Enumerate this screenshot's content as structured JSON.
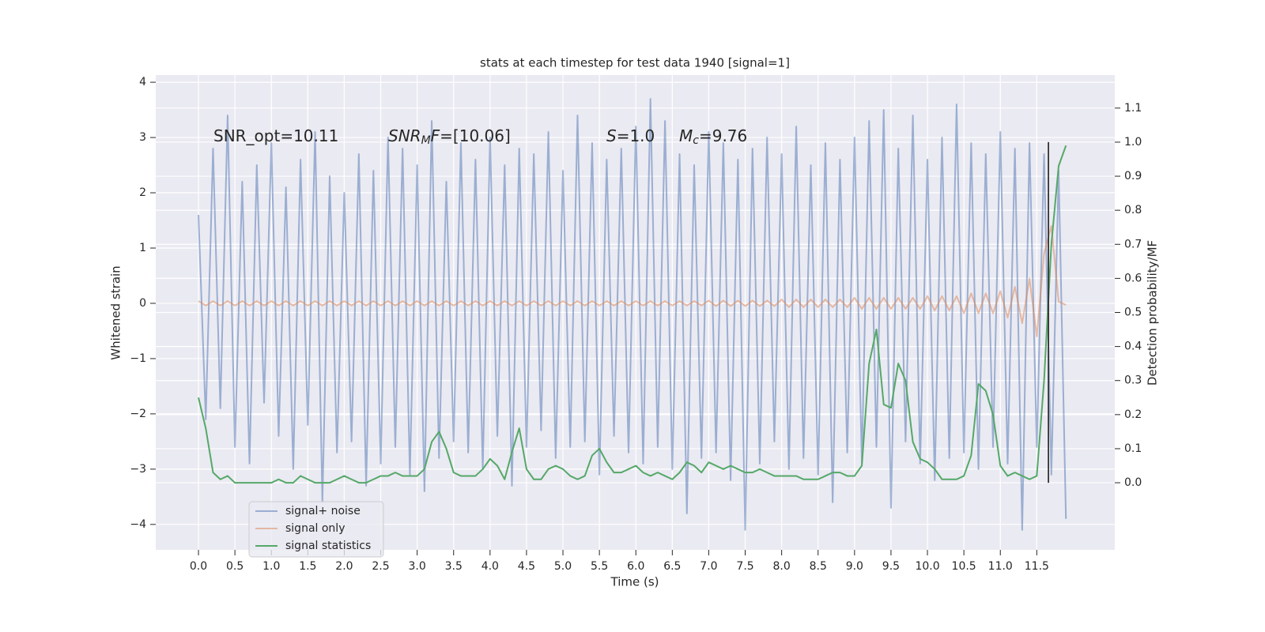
{
  "chart_data": {
    "type": "line",
    "title": "stats at each timestep for test data 1940 [signal=1]",
    "xlabel": "Time (s)",
    "ylabel": "Whitened strain",
    "y2label": "Detection probability/MF",
    "annotations": [
      [
        {
          "text": "SNR_opt=10.11",
          "style": "normal"
        }
      ],
      [
        {
          "text": "SNR",
          "style": "italic"
        },
        {
          "text": "M",
          "style": "sub"
        },
        {
          "text": "F",
          "style": "italic"
        },
        {
          "text": "=[10.06]",
          "style": "normal"
        }
      ],
      [
        {
          "text": "S",
          "style": "italic"
        },
        {
          "text": "=1.0",
          "style": "normal"
        }
      ],
      [
        {
          "text": "M",
          "style": "italic"
        },
        {
          "text": "c",
          "style": "sub"
        },
        {
          "text": "=9.76",
          "style": "normal"
        }
      ]
    ],
    "x": [
      0,
      0.1,
      0.2,
      0.3,
      0.4,
      0.5,
      0.6,
      0.7,
      0.8,
      0.9,
      1,
      1.1,
      1.2,
      1.3,
      1.4,
      1.5,
      1.6,
      1.7,
      1.8,
      1.9,
      2,
      2.1,
      2.2,
      2.3,
      2.4,
      2.5,
      2.6,
      2.7,
      2.8,
      2.9,
      3,
      3.1,
      3.2,
      3.3,
      3.4,
      3.5,
      3.6,
      3.7,
      3.8,
      3.9,
      4,
      4.1,
      4.2,
      4.3,
      4.4,
      4.5,
      4.6,
      4.7,
      4.8,
      4.9,
      5,
      5.1,
      5.2,
      5.3,
      5.4,
      5.5,
      5.6,
      5.7,
      5.8,
      5.9,
      6,
      6.1,
      6.2,
      6.3,
      6.4,
      6.5,
      6.6,
      6.7,
      6.8,
      6.9,
      7,
      7.1,
      7.2,
      7.3,
      7.4,
      7.5,
      7.6,
      7.7,
      7.8,
      7.9,
      8,
      8.1,
      8.2,
      8.3,
      8.4,
      8.5,
      8.6,
      8.7,
      8.8,
      8.9,
      9,
      9.1,
      9.2,
      9.3,
      9.4,
      9.5,
      9.6,
      9.7,
      9.8,
      9.9,
      10,
      10.1,
      10.2,
      10.3,
      10.4,
      10.5,
      10.6,
      10.7,
      10.8,
      10.9,
      11,
      11.1,
      11.2,
      11.3,
      11.4,
      11.5,
      11.6,
      11.7,
      11.8,
      11.9
    ],
    "series": [
      {
        "name": "signal+ noise",
        "color": "#4c72b0",
        "opacity": 0.5,
        "values": [
          1.6,
          -2.1,
          2.8,
          -1.9,
          3.4,
          -2.6,
          2.2,
          -2.9,
          2.5,
          -1.8,
          2.9,
          -2.4,
          2.1,
          -3.0,
          2.6,
          -2.2,
          3.1,
          -3.6,
          2.3,
          -2.7,
          2.0,
          -2.5,
          2.7,
          -3.3,
          2.4,
          -2.9,
          3.0,
          -2.6,
          2.8,
          -3.1,
          2.5,
          -3.4,
          3.3,
          -2.8,
          2.2,
          -2.5,
          2.9,
          -2.7,
          2.6,
          -3.0,
          3.0,
          -2.4,
          2.5,
          -3.3,
          2.8,
          -2.6,
          2.7,
          -2.3,
          3.1,
          -2.8,
          2.4,
          -2.6,
          3.4,
          -2.5,
          2.9,
          -3.1,
          2.6,
          -2.4,
          2.8,
          -2.7,
          3.2,
          -2.9,
          3.7,
          -2.6,
          3.3,
          -3.0,
          2.7,
          -3.8,
          2.5,
          -2.8,
          3.1,
          -2.7,
          2.9,
          -3.2,
          2.6,
          -4.1,
          2.8,
          -2.9,
          3.0,
          -2.5,
          2.7,
          -3.0,
          3.2,
          -2.8,
          2.5,
          -3.1,
          2.9,
          -3.6,
          2.6,
          -2.7,
          3.0,
          -2.9,
          3.3,
          -2.6,
          3.5,
          -3.7,
          2.8,
          -2.5,
          3.4,
          -2.9,
          2.6,
          -3.2,
          3.0,
          -2.8,
          3.6,
          -2.7,
          2.9,
          -3.0,
          2.7,
          -2.6,
          3.1,
          -2.9,
          2.8,
          -4.1,
          2.9,
          -2.6,
          2.7,
          -3.1,
          2.4,
          -3.9
        ]
      },
      {
        "name": "signal only",
        "color": "#dd8452",
        "opacity": 0.5,
        "values": [
          0.04,
          -0.04,
          0.04,
          -0.04,
          0.04,
          -0.04,
          0.04,
          -0.04,
          0.04,
          -0.04,
          0.04,
          -0.04,
          0.04,
          -0.04,
          0.04,
          -0.04,
          0.04,
          -0.04,
          0.04,
          -0.04,
          0.04,
          -0.04,
          0.04,
          -0.04,
          0.04,
          -0.04,
          0.04,
          -0.04,
          0.04,
          -0.04,
          0.04,
          -0.04,
          0.04,
          -0.04,
          0.04,
          -0.04,
          0.04,
          -0.04,
          0.04,
          -0.04,
          0.04,
          -0.04,
          0.04,
          -0.04,
          0.04,
          -0.04,
          0.04,
          -0.04,
          0.04,
          -0.04,
          0.04,
          -0.04,
          0.04,
          -0.04,
          0.04,
          -0.04,
          0.04,
          -0.04,
          0.04,
          -0.04,
          0.04,
          -0.04,
          0.04,
          -0.04,
          0.04,
          -0.04,
          0.04,
          -0.04,
          0.04,
          -0.04,
          0.05,
          -0.05,
          0.05,
          -0.05,
          0.05,
          -0.05,
          0.05,
          -0.05,
          0.05,
          -0.05,
          0.07,
          -0.07,
          0.07,
          -0.07,
          0.07,
          -0.07,
          0.07,
          -0.07,
          0.07,
          -0.07,
          0.1,
          -0.1,
          0.1,
          -0.1,
          0.1,
          -0.1,
          0.1,
          -0.1,
          0.1,
          -0.1,
          0.13,
          -0.13,
          0.13,
          -0.13,
          0.13,
          -0.18,
          0.18,
          -0.18,
          0.18,
          -0.18,
          0.22,
          -0.26,
          0.3,
          -0.36,
          0.45,
          -0.6,
          0.9,
          1.4,
          0.03,
          -0.03
        ]
      },
      {
        "name": "signal statistics",
        "color": "#55a868",
        "axis": "y2",
        "values": [
          0.25,
          0.16,
          0.03,
          0.01,
          0.02,
          0.0,
          0.0,
          0.0,
          0.0,
          0.0,
          0.0,
          0.01,
          0.0,
          0.0,
          0.02,
          0.01,
          0.0,
          0.0,
          0.0,
          0.01,
          0.02,
          0.01,
          0.0,
          0.0,
          0.01,
          0.02,
          0.02,
          0.03,
          0.02,
          0.02,
          0.02,
          0.04,
          0.12,
          0.15,
          0.1,
          0.03,
          0.02,
          0.02,
          0.02,
          0.04,
          0.07,
          0.05,
          0.01,
          0.09,
          0.16,
          0.04,
          0.01,
          0.01,
          0.04,
          0.05,
          0.04,
          0.02,
          0.01,
          0.02,
          0.08,
          0.1,
          0.06,
          0.03,
          0.03,
          0.04,
          0.05,
          0.03,
          0.02,
          0.03,
          0.02,
          0.01,
          0.03,
          0.06,
          0.05,
          0.03,
          0.06,
          0.05,
          0.04,
          0.05,
          0.04,
          0.03,
          0.03,
          0.04,
          0.03,
          0.02,
          0.02,
          0.02,
          0.02,
          0.01,
          0.01,
          0.01,
          0.02,
          0.03,
          0.03,
          0.02,
          0.02,
          0.05,
          0.35,
          0.45,
          0.23,
          0.22,
          0.35,
          0.3,
          0.12,
          0.07,
          0.06,
          0.04,
          0.01,
          0.01,
          0.01,
          0.02,
          0.08,
          0.29,
          0.27,
          0.2,
          0.05,
          0.02,
          0.03,
          0.02,
          0.01,
          0.02,
          0.3,
          0.7,
          0.93,
          0.99
        ]
      }
    ],
    "vline": {
      "x": 11.66,
      "ymin": 0,
      "ymax": 1,
      "color": "#333333",
      "axis": "y2"
    },
    "xlim": [
      -0.586,
      12.57
    ],
    "xticks": [
      {
        "value": 0,
        "label": "0.0"
      },
      {
        "value": 0.5,
        "label": "0.5"
      },
      {
        "value": 1,
        "label": "1.0"
      },
      {
        "value": 1.5,
        "label": "1.5"
      },
      {
        "value": 2,
        "label": "2.0"
      },
      {
        "value": 2.5,
        "label": "2.5"
      },
      {
        "value": 3,
        "label": "3.0"
      },
      {
        "value": 3.5,
        "label": "3.5"
      },
      {
        "value": 4,
        "label": "4.0"
      },
      {
        "value": 4.5,
        "label": "4.5"
      },
      {
        "value": 5,
        "label": "5.0"
      },
      {
        "value": 5.5,
        "label": "5.5"
      },
      {
        "value": 6,
        "label": "6.0"
      },
      {
        "value": 6.5,
        "label": "6.5"
      },
      {
        "value": 7,
        "label": "7.0"
      },
      {
        "value": 7.5,
        "label": "7.5"
      },
      {
        "value": 8,
        "label": "8.0"
      },
      {
        "value": 8.5,
        "label": "8.5"
      },
      {
        "value": 9,
        "label": "9.0"
      },
      {
        "value": 9.5,
        "label": "9.5"
      },
      {
        "value": 10,
        "label": "10.0"
      },
      {
        "value": 10.5,
        "label": "10.5"
      },
      {
        "value": 11,
        "label": "11.0"
      },
      {
        "value": 11.5,
        "label": "11.5"
      }
    ],
    "ylim": [
      -4.46,
      4.13
    ],
    "yticks": [
      {
        "value": -4,
        "label": "−4"
      },
      {
        "value": -3,
        "label": "−3"
      },
      {
        "value": -2,
        "label": "−2"
      },
      {
        "value": -1,
        "label": "−1"
      },
      0,
      1,
      2,
      3,
      4
    ],
    "y2lim": [
      -0.197,
      1.197
    ],
    "y2ticks": [
      {
        "value": 0,
        "label": "0.0"
      },
      {
        "value": 0.1,
        "label": "0.1"
      },
      {
        "value": 0.2,
        "label": "0.2"
      },
      {
        "value": 0.3,
        "label": "0.3"
      },
      {
        "value": 0.4,
        "label": "0.4"
      },
      {
        "value": 0.5,
        "label": "0.5"
      },
      {
        "value": 0.6,
        "label": "0.6"
      },
      {
        "value": 0.7,
        "label": "0.7"
      },
      {
        "value": 0.8,
        "label": "0.8"
      },
      {
        "value": 0.9,
        "label": "0.9"
      },
      {
        "value": 1,
        "label": "1.0"
      },
      {
        "value": 1.1,
        "label": "1.1"
      }
    ],
    "grid": true,
    "legend": "lower left"
  }
}
